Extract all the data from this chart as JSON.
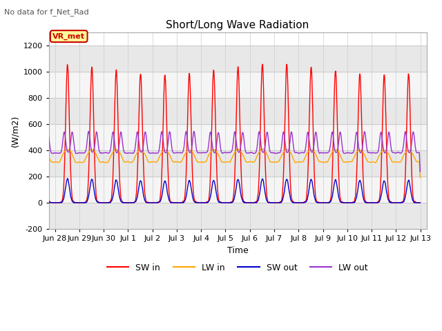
{
  "title": "Short/Long Wave Radiation",
  "subtitle": "No data for f_Net_Rad",
  "ylabel": "(W/m2)",
  "xlabel": "Time",
  "ylim": [
    -200,
    1300
  ],
  "yticks": [
    -200,
    0,
    200,
    400,
    600,
    800,
    1000,
    1200
  ],
  "background_color": "#ffffff",
  "plot_bg_color": "#ffffff",
  "grid_color": "#cccccc",
  "legend_label": "VR_met",
  "legend_box_color": "#ffff99",
  "legend_box_edge": "#cc0000",
  "colors": {
    "SW_in": "#ff0000",
    "LW_in": "#ffa500",
    "SW_out": "#0000cc",
    "LW_out": "#9933cc"
  },
  "xtick_labels": [
    "Jun 28",
    "Jun 29",
    "Jun 30",
    "Jul 1",
    "Jul 2",
    "Jul 3",
    "Jul 4",
    "Jul 5",
    "Jul 6",
    "Jul 7",
    "Jul 8",
    "Jul 9",
    "Jul 10",
    "Jul 11",
    "Jul 12",
    "Jul 13"
  ],
  "SW_in_peak": 1020,
  "LW_in_base": 320,
  "SW_out_peak": 175,
  "LW_out_base": 380,
  "LW_out_daytime_peak": 580,
  "sunrise": 5.0,
  "sunset": 19.5
}
